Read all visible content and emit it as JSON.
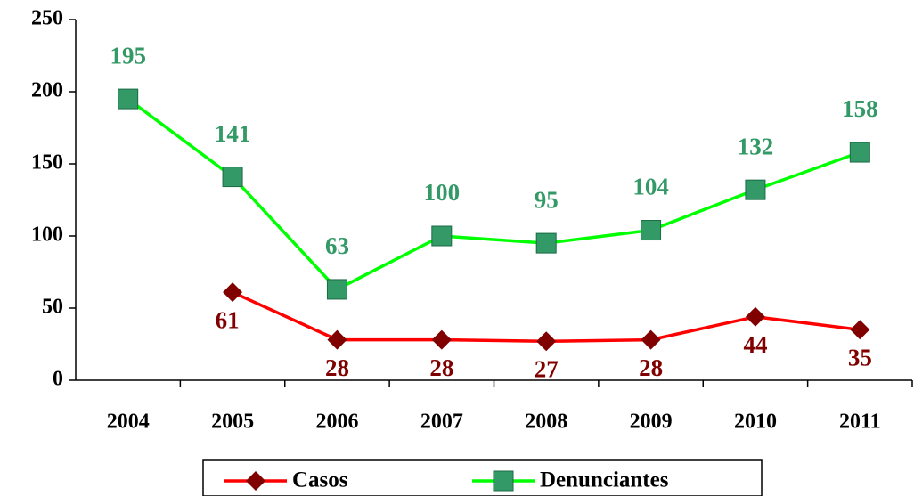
{
  "chart_data": {
    "type": "line",
    "categories": [
      "2004",
      "2005",
      "2006",
      "2007",
      "2008",
      "2009",
      "2010",
      "2011"
    ],
    "series": [
      {
        "name": "Casos",
        "color": "#ff0000",
        "marker_color": "#800000",
        "marker": "diamond",
        "label_color": "#800000",
        "label_position": "below",
        "values": [
          null,
          61,
          28,
          28,
          27,
          28,
          44,
          35
        ]
      },
      {
        "name": "Denunciantes",
        "color": "#00ff00",
        "marker_color": "#339966",
        "marker": "square",
        "label_color": "#339966",
        "label_position": "above",
        "values": [
          195,
          141,
          63,
          100,
          95,
          104,
          132,
          158
        ]
      }
    ],
    "ylim": [
      0,
      250
    ],
    "yticks": [
      0,
      50,
      100,
      150,
      200,
      250
    ],
    "grid": false,
    "legend": "bottom"
  }
}
